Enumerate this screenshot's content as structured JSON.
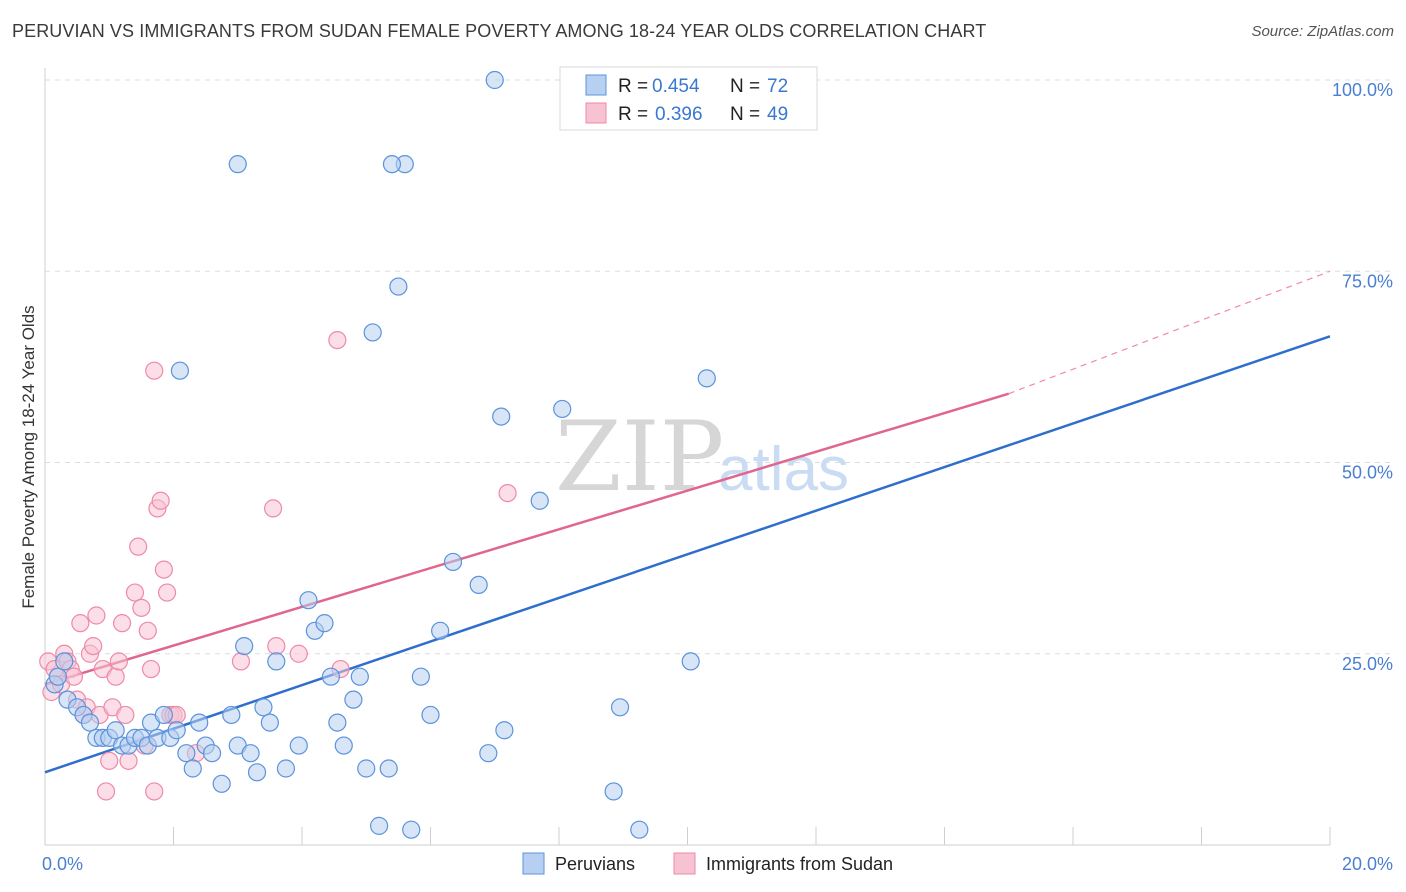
{
  "title": "PERUVIAN VS IMMIGRANTS FROM SUDAN FEMALE POVERTY AMONG 18-24 YEAR OLDS CORRELATION CHART",
  "source": "Source: ZipAtlas.com",
  "watermark": {
    "main": "ZIP",
    "sub": "atlas"
  },
  "colors": {
    "blue": "#5b93dc",
    "blue_fill": "#b7d0f1",
    "blue_line": "#2f6fcc",
    "pink": "#ee8aa8",
    "pink_fill": "#f7c3d3",
    "pink_line": "#e0668f",
    "tick_text": "#4a7fd1",
    "grid": "#dddddd"
  },
  "legend": {
    "rows": [
      {
        "r_label": "R = ",
        "r_value": "0.454",
        "n_label": "N = ",
        "n_value": "72"
      },
      {
        "r_label": "R = ",
        "r_value": "0.396",
        "n_label": "N = ",
        "n_value": "49"
      }
    ]
  },
  "chart_data": {
    "type": "scatter",
    "title": "PERUVIAN VS IMMIGRANTS FROM SUDAN FEMALE POVERTY AMONG 18-24 YEAR OLDS CORRELATION CHART",
    "xlabel": "",
    "ylabel": "Female Poverty Among 18-24 Year Olds",
    "xlim": [
      0,
      20
    ],
    "ylim": [
      0,
      100
    ],
    "x_tick_labels": {
      "left": "0.0%",
      "right": "20.0%"
    },
    "y_ticks": [
      25,
      50,
      75,
      100
    ],
    "y_tick_labels": [
      "25.0%",
      "50.0%",
      "75.0%",
      "100.0%"
    ],
    "series": [
      {
        "name": "Peruvians",
        "R": 0.454,
        "N": 72,
        "trend": {
          "x0": 0,
          "y0": 9.5,
          "x1": 20,
          "y1": 66.5
        },
        "points": [
          [
            0.15,
            21
          ],
          [
            0.2,
            22
          ],
          [
            0.35,
            19
          ],
          [
            0.5,
            18
          ],
          [
            0.6,
            17
          ],
          [
            0.7,
            16
          ],
          [
            0.8,
            14
          ],
          [
            0.9,
            14
          ],
          [
            1.0,
            14
          ],
          [
            1.1,
            15
          ],
          [
            1.2,
            13
          ],
          [
            1.3,
            13
          ],
          [
            1.4,
            14
          ],
          [
            1.5,
            14
          ],
          [
            1.6,
            13
          ],
          [
            1.65,
            16
          ],
          [
            1.75,
            14
          ],
          [
            1.85,
            17
          ],
          [
            1.95,
            14
          ],
          [
            2.05,
            15
          ],
          [
            2.2,
            12
          ],
          [
            2.3,
            10
          ],
          [
            2.4,
            16
          ],
          [
            2.5,
            13
          ],
          [
            2.6,
            12
          ],
          [
            2.75,
            8
          ],
          [
            2.9,
            17
          ],
          [
            3.0,
            13
          ],
          [
            3.1,
            26
          ],
          [
            3.2,
            12
          ],
          [
            3.3,
            9.5
          ],
          [
            3.4,
            18
          ],
          [
            3.5,
            16
          ],
          [
            3.6,
            24
          ],
          [
            3.75,
            10
          ],
          [
            3.95,
            13
          ],
          [
            4.1,
            32
          ],
          [
            4.2,
            28
          ],
          [
            4.35,
            29
          ],
          [
            4.45,
            22
          ],
          [
            4.55,
            16
          ],
          [
            4.65,
            13
          ],
          [
            4.8,
            19
          ],
          [
            4.9,
            22
          ],
          [
            5.0,
            10
          ],
          [
            5.1,
            67
          ],
          [
            5.2,
            2.5
          ],
          [
            5.35,
            10
          ],
          [
            5.5,
            73
          ],
          [
            5.6,
            89
          ],
          [
            5.7,
            2
          ],
          [
            5.85,
            22
          ],
          [
            6.0,
            17
          ],
          [
            6.15,
            28
          ],
          [
            6.35,
            37
          ],
          [
            6.75,
            34
          ],
          [
            6.9,
            12
          ],
          [
            7.1,
            56
          ],
          [
            7.15,
            15
          ],
          [
            7.7,
            45
          ],
          [
            8.05,
            57
          ],
          [
            8.85,
            7
          ],
          [
            8.95,
            18
          ],
          [
            9.25,
            2
          ],
          [
            10.05,
            24
          ],
          [
            10.1,
            100
          ],
          [
            10.3,
            61
          ],
          [
            7.0,
            100
          ],
          [
            5.4,
            89
          ],
          [
            3.0,
            89
          ],
          [
            0.3,
            24
          ],
          [
            2.1,
            62
          ]
        ]
      },
      {
        "name": "Immigrants from Sudan",
        "R": 0.396,
        "N": 49,
        "trend": {
          "x0": 0,
          "y0": 21,
          "x1": 15,
          "y1": 59,
          "dash_x1": 20,
          "dash_y1": 75
        },
        "points": [
          [
            0.05,
            24
          ],
          [
            0.1,
            20
          ],
          [
            0.15,
            23
          ],
          [
            0.2,
            22
          ],
          [
            0.25,
            21
          ],
          [
            0.3,
            25
          ],
          [
            0.35,
            24
          ],
          [
            0.4,
            23
          ],
          [
            0.45,
            22
          ],
          [
            0.5,
            19
          ],
          [
            0.55,
            29
          ],
          [
            0.6,
            17
          ],
          [
            0.65,
            18
          ],
          [
            0.7,
            25
          ],
          [
            0.75,
            26
          ],
          [
            0.8,
            30
          ],
          [
            0.85,
            17
          ],
          [
            0.9,
            23
          ],
          [
            0.95,
            7
          ],
          [
            1.0,
            11
          ],
          [
            1.05,
            18
          ],
          [
            1.1,
            22
          ],
          [
            1.15,
            24
          ],
          [
            1.2,
            29
          ],
          [
            1.25,
            17
          ],
          [
            1.3,
            11
          ],
          [
            1.4,
            33
          ],
          [
            1.45,
            39
          ],
          [
            1.5,
            31
          ],
          [
            1.55,
            13
          ],
          [
            1.6,
            28
          ],
          [
            1.65,
            23
          ],
          [
            1.7,
            7
          ],
          [
            1.75,
            44
          ],
          [
            1.8,
            45
          ],
          [
            1.85,
            36
          ],
          [
            1.9,
            33
          ],
          [
            1.95,
            17
          ],
          [
            2.0,
            17
          ],
          [
            2.05,
            17
          ],
          [
            2.35,
            12
          ],
          [
            3.05,
            24
          ],
          [
            3.6,
            26
          ],
          [
            3.95,
            25
          ],
          [
            4.6,
            23
          ],
          [
            4.55,
            66
          ],
          [
            1.7,
            62
          ],
          [
            7.2,
            46
          ],
          [
            3.55,
            44
          ]
        ]
      }
    ]
  },
  "bottom_legend": [
    "Peruvians",
    "Immigrants from Sudan"
  ]
}
